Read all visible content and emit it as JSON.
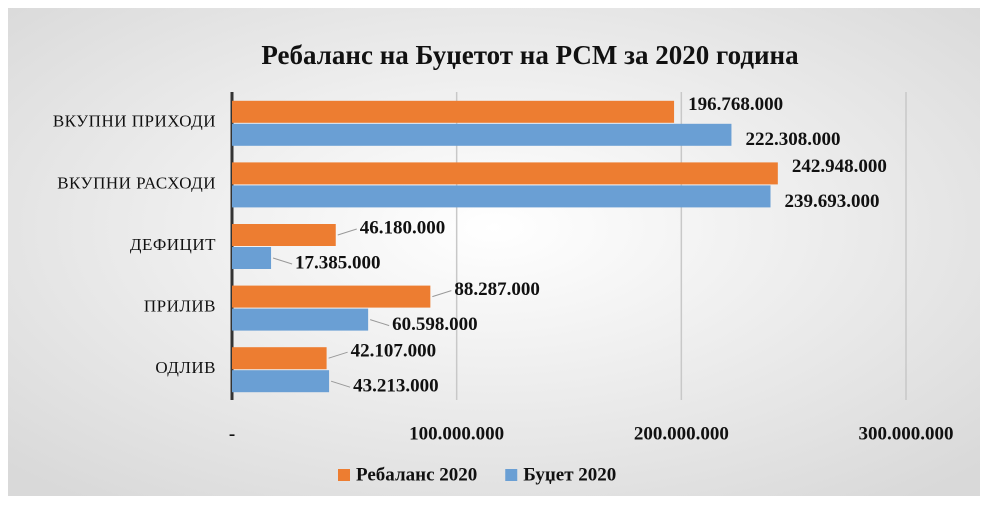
{
  "chart_data": {
    "type": "bar",
    "orientation": "horizontal",
    "title": "Ребаланс на Буџетот на РСМ за 2020 година",
    "categories": [
      "ВКУПНИ ПРИХОДИ",
      "ВКУПНИ РАСХОДИ",
      "ДЕФИЦИТ",
      "ПРИЛИВ",
      "ОДЛИВ"
    ],
    "series": [
      {
        "name": "Ребаланс 2020",
        "color": "#ed7d31",
        "values": [
          196768000,
          242948000,
          46180000,
          88287000,
          42107000
        ],
        "value_labels": [
          "196.768.000",
          "242.948.000",
          "46.180.000",
          "88.287.000",
          "42.107.000"
        ]
      },
      {
        "name": "Буџет 2020",
        "color": "#6a9fd4",
        "values": [
          222308000,
          239693000,
          17385000,
          60598000,
          43213000
        ],
        "value_labels": [
          "222.308.000",
          "239.693.000",
          "17.385.000",
          "60.598.000",
          "43.213.000"
        ]
      }
    ],
    "xlim": [
      0,
      300000000
    ],
    "xticks": [
      {
        "value": 0,
        "label": "-"
      },
      {
        "value": 100000000,
        "label": "100.000.000"
      },
      {
        "value": 200000000,
        "label": "200.000.000"
      },
      {
        "value": 300000000,
        "label": "300.000.000"
      }
    ],
    "grid": true,
    "legend": "bottom"
  }
}
